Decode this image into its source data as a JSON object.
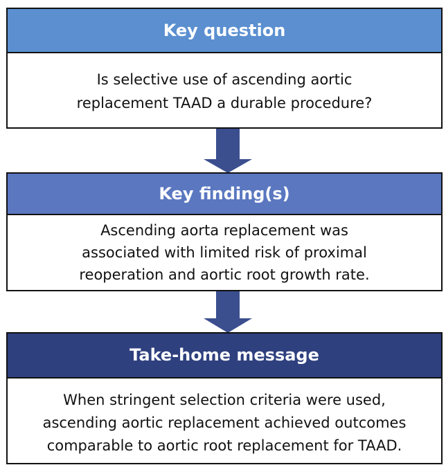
{
  "boxes": [
    {
      "title": "Key question",
      "lines": [
        "Is selective use of ascending aortic",
        "replacement TAAD a durable procedure?"
      ]
    },
    {
      "title": "Key finding(s)",
      "lines": [
        "Ascending aorta replacement was",
        "associated with limited risk of proximal",
        "reoperation and aortic root growth rate."
      ]
    },
    {
      "title": "Take-home message",
      "lines": [
        "When stringent selection criteria were used,",
        "ascending aortic replacement achieved outcomes",
        "comparable to aortic root replacement for TAAD."
      ]
    }
  ]
}
